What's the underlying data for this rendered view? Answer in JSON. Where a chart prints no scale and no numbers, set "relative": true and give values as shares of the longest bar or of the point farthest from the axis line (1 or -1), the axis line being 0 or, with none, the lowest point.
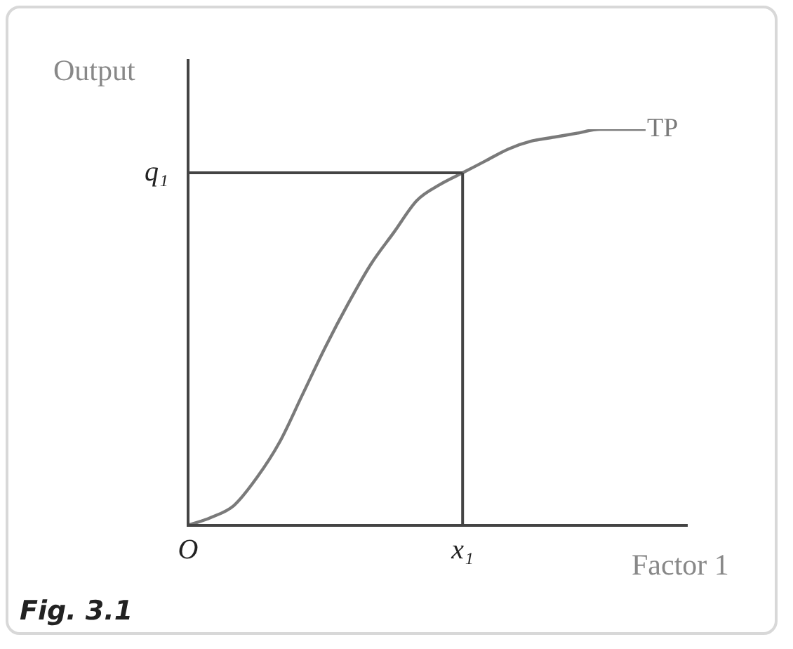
{
  "chart_data": {
    "type": "line",
    "relative": true,
    "xlabel": "Factor 1",
    "ylabel": "Output",
    "annotations": [
      "Fig. 3.1"
    ],
    "categories": [
      "O",
      null,
      null,
      null,
      null,
      null,
      null,
      null,
      null,
      null,
      null,
      null,
      "x₁",
      null,
      null,
      null,
      null,
      null,
      null,
      null,
      null
    ],
    "series": [
      {
        "name": "TP",
        "color": "#7a7a7a",
        "values": [
          0,
          0.02,
          0.05,
          0.12,
          0.21,
          0.33,
          0.45,
          0.56,
          0.66,
          0.74,
          0.82,
          0.86,
          0.89,
          0.92,
          0.95,
          0.97,
          0.98,
          0.99,
          1,
          1,
          1
        ]
      }
    ],
    "ref_lines": [
      {
        "axis": "x",
        "value": "x₁",
        "color": "#444444"
      },
      {
        "axis": "y",
        "value": 0.89,
        "label": "q₁",
        "color": "#444444"
      }
    ],
    "grid": false,
    "legend": false,
    "marker": "none",
    "line_style": "solid"
  }
}
